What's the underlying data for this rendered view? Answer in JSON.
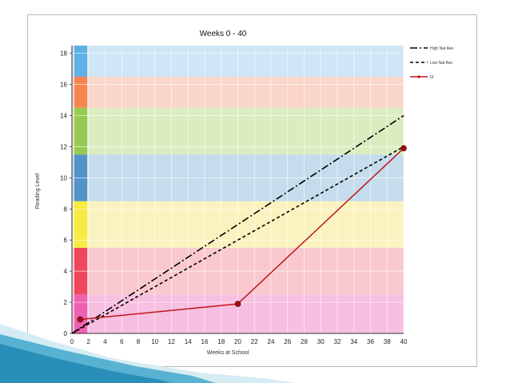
{
  "chart_data": {
    "type": "line",
    "title": "Weeks 0 - 40",
    "xlabel": "Weeks at School",
    "ylabel": "Reading Level",
    "xlim": [
      0,
      40
    ],
    "ylim": [
      0,
      18.5
    ],
    "xticks": [
      0,
      2,
      4,
      6,
      8,
      10,
      12,
      14,
      16,
      18,
      20,
      22,
      24,
      26,
      28,
      30,
      32,
      34,
      36,
      38,
      40
    ],
    "yticks": [
      0,
      2,
      4,
      6,
      8,
      10,
      12,
      14,
      16,
      18
    ],
    "grid": true,
    "legend_position": "top-right",
    "bands": [
      {
        "from": 0,
        "to": 2.5,
        "color": "#f7bfe0",
        "side": "#ee4fa8"
      },
      {
        "from": 2.5,
        "to": 5.5,
        "color": "#f9c9cf",
        "side": "#ee2f4a"
      },
      {
        "from": 5.5,
        "to": 8.5,
        "color": "#fbf3bf",
        "side": "#f8e82c"
      },
      {
        "from": 8.5,
        "to": 11.5,
        "color": "#c4dcec",
        "side": "#3f86c4"
      },
      {
        "from": 11.5,
        "to": 14.5,
        "color": "#dbecbf",
        "side": "#8cc43f"
      },
      {
        "from": 14.5,
        "to": 16.5,
        "color": "#f9d6c9",
        "side": "#f5783c"
      },
      {
        "from": 16.5,
        "to": 18.5,
        "color": "#cfe6f6",
        "side": "#4ba6e0"
      }
    ],
    "series": [
      {
        "name": "High Nat Ave",
        "style": "dashdot",
        "color": "#000000",
        "x": [
          0,
          40
        ],
        "y": [
          0,
          14
        ]
      },
      {
        "name": "Low Nat Ave",
        "style": "dashed",
        "color": "#000000",
        "x": [
          0,
          40
        ],
        "y": [
          0,
          12
        ]
      },
      {
        "name": "III",
        "style": "solid-marker",
        "color": "#c0141b",
        "x": [
          1,
          20,
          40
        ],
        "y": [
          0.9,
          1.9,
          11.9
        ]
      }
    ]
  }
}
